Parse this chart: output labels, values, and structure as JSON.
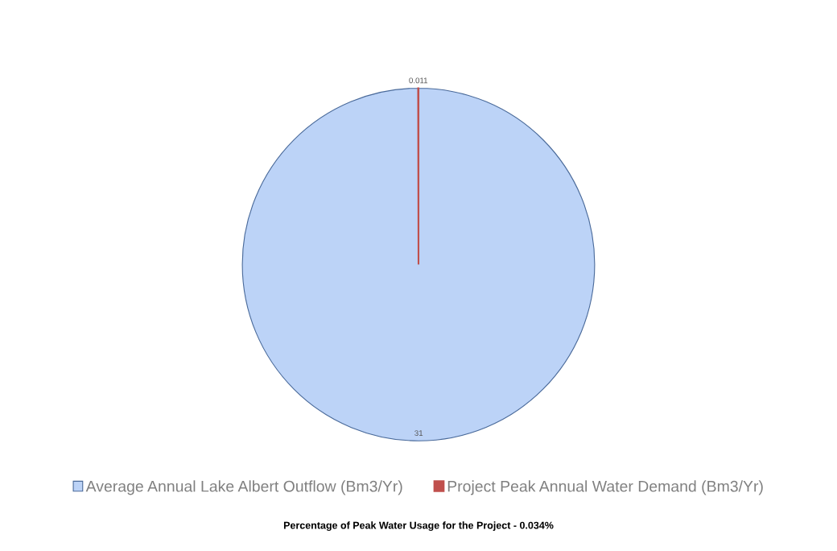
{
  "chart_data": {
    "type": "pie",
    "title": "Percentage of Peak Water Usage for the Project - 0.034%",
    "categories": [
      "Average Annual Lake Albert Outflow (Bm3/Yr)",
      "Project Peak Annual Water Demand (Bm3/Yr)"
    ],
    "values": [
      31,
      0.011
    ],
    "colors": [
      "#bcd3f7",
      "#c0504d"
    ],
    "value_labels": [
      "31",
      "0.011"
    ],
    "legend": "bottom"
  }
}
